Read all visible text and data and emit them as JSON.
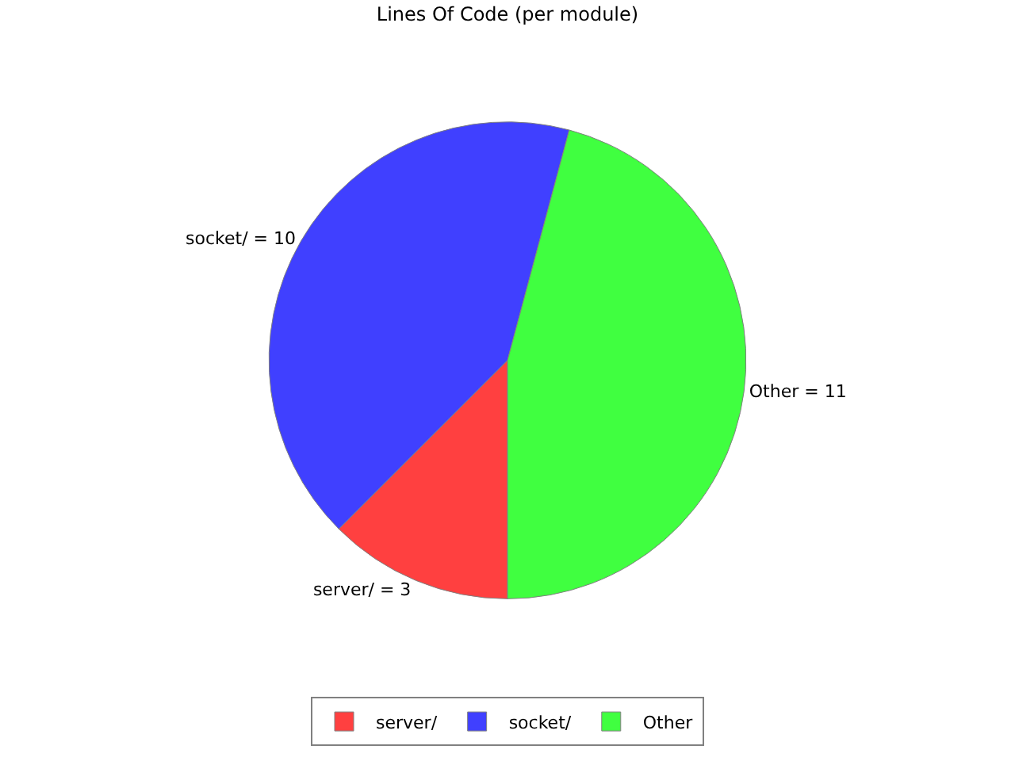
{
  "chart_data": {
    "type": "pie",
    "title": "Lines Of Code (per module)",
    "categories": [
      "server/",
      "socket/",
      "Other"
    ],
    "values": [
      3,
      10,
      11
    ],
    "colors": [
      "#ff4040",
      "#4040ff",
      "#40ff40"
    ],
    "value_labels": [
      "server/ = 3",
      "socket/ = 10",
      "Other = 11"
    ],
    "legend": "bottom"
  }
}
